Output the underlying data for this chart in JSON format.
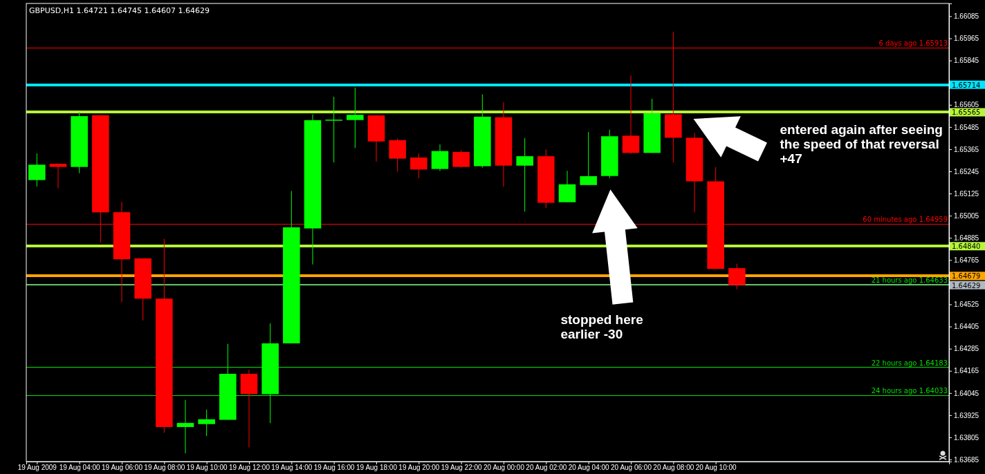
{
  "chart_data": {
    "type": "candlestick",
    "title": "GBPUSD,H1  1.64721 1.64745 1.64607 1.64629",
    "x": [
      "2009-08-19T02:00",
      "2009-08-19T03:00",
      "2009-08-19T04:00",
      "2009-08-19T05:00",
      "2009-08-19T06:00",
      "2009-08-19T07:00",
      "2009-08-19T08:00",
      "2009-08-19T09:00",
      "2009-08-19T10:00",
      "2009-08-19T11:00",
      "2009-08-19T12:00",
      "2009-08-19T13:00",
      "2009-08-19T14:00",
      "2009-08-19T15:00",
      "2009-08-19T16:00",
      "2009-08-19T17:00",
      "2009-08-19T18:00",
      "2009-08-19T19:00",
      "2009-08-19T20:00",
      "2009-08-19T21:00",
      "2009-08-19T22:00",
      "2009-08-19T23:00",
      "2009-08-20T00:00",
      "2009-08-20T01:00",
      "2009-08-20T02:00",
      "2009-08-20T03:00",
      "2009-08-20T04:00",
      "2009-08-20T05:00",
      "2009-08-20T06:00",
      "2009-08-20T07:00",
      "2009-08-20T08:00",
      "2009-08-20T09:00",
      "2009-08-20T10:00",
      "2009-08-20T11:00"
    ],
    "ohlc": [
      [
        1.65198,
        1.65342,
        1.65163,
        1.65281
      ],
      [
        1.65286,
        1.65288,
        1.65153,
        1.65269
      ],
      [
        1.65269,
        1.65567,
        1.65235,
        1.65544
      ],
      [
        1.65549,
        1.65549,
        1.64859,
        1.65023
      ],
      [
        1.65024,
        1.6508,
        1.64537,
        1.64769
      ],
      [
        1.64774,
        1.64774,
        1.64438,
        1.64556
      ],
      [
        1.64556,
        1.6488,
        1.6383,
        1.63861
      ],
      [
        1.63861,
        1.64008,
        1.63719,
        1.63883
      ],
      [
        1.63877,
        1.63956,
        1.63812,
        1.63903
      ],
      [
        1.639,
        1.64311,
        1.639,
        1.64149
      ],
      [
        1.64149,
        1.64171,
        1.63751,
        1.64039
      ],
      [
        1.64039,
        1.64422,
        1.63882,
        1.64314
      ],
      [
        1.64314,
        1.65139,
        1.64314,
        1.64942
      ],
      [
        1.64936,
        1.65554,
        1.64741,
        1.65522
      ],
      [
        1.6552,
        1.65649,
        1.65293,
        1.65525
      ],
      [
        1.65523,
        1.65698,
        1.65371,
        1.65551
      ],
      [
        1.65548,
        1.6555,
        1.65298,
        1.65407
      ],
      [
        1.65414,
        1.65423,
        1.65243,
        1.65314
      ],
      [
        1.6532,
        1.65342,
        1.65208,
        1.65255
      ],
      [
        1.65258,
        1.65391,
        1.65247,
        1.65355
      ],
      [
        1.6535,
        1.6536,
        1.65265,
        1.65269
      ],
      [
        1.65273,
        1.65662,
        1.65265,
        1.65541
      ],
      [
        1.65538,
        1.6562,
        1.65163,
        1.65276
      ],
      [
        1.65276,
        1.65425,
        1.65027,
        1.65327
      ],
      [
        1.65327,
        1.65363,
        1.65047,
        1.65075
      ],
      [
        1.65078,
        1.65248,
        1.65078,
        1.65175
      ],
      [
        1.65171,
        1.65458,
        1.65171,
        1.65219
      ],
      [
        1.6522,
        1.6547,
        1.65208,
        1.65435
      ],
      [
        1.65438,
        1.65764,
        1.6534,
        1.65345
      ],
      [
        1.65345,
        1.65638,
        1.65345,
        1.65559
      ],
      [
        1.65554,
        1.66001,
        1.65293,
        1.65427
      ],
      [
        1.65427,
        1.65453,
        1.65023,
        1.65191
      ],
      [
        1.65191,
        1.65268,
        1.64717,
        1.64717
      ],
      [
        1.64721,
        1.64745,
        1.64607,
        1.64629
      ]
    ],
    "xlim": [
      "2009-08-19T01:30",
      "2009-08-20T21:00"
    ],
    "xticks": [
      {
        "value": "2009-08-19T02:00",
        "label": "19 Aug 2009"
      },
      {
        "value": "2009-08-19T04:00",
        "label": "19 Aug 04:00"
      },
      {
        "value": "2009-08-19T06:00",
        "label": "19 Aug 06:00"
      },
      {
        "value": "2009-08-19T08:00",
        "label": "19 Aug 08:00"
      },
      {
        "value": "2009-08-19T10:00",
        "label": "19 Aug 10:00"
      },
      {
        "value": "2009-08-19T12:00",
        "label": "19 Aug 12:00"
      },
      {
        "value": "2009-08-19T14:00",
        "label": "19 Aug 14:00"
      },
      {
        "value": "2009-08-19T16:00",
        "label": "19 Aug 16:00"
      },
      {
        "value": "2009-08-19T18:00",
        "label": "19 Aug 18:00"
      },
      {
        "value": "2009-08-19T20:00",
        "label": "19 Aug 20:00"
      },
      {
        "value": "2009-08-19T22:00",
        "label": "19 Aug 22:00"
      },
      {
        "value": "2009-08-20T00:00",
        "label": "20 Aug 00:00"
      },
      {
        "value": "2009-08-20T02:00",
        "label": "20 Aug 02:00"
      },
      {
        "value": "2009-08-20T04:00",
        "label": "20 Aug 04:00"
      },
      {
        "value": "2009-08-20T06:00",
        "label": "20 Aug 06:00"
      },
      {
        "value": "2009-08-20T08:00",
        "label": "20 Aug 08:00"
      },
      {
        "value": "2009-08-20T10:00",
        "label": "20 Aug 10:00"
      }
    ],
    "ylim": [
      1.63674,
      1.66154
    ],
    "yticks": [
      {
        "value": 1.66085,
        "label": "1.66085"
      },
      {
        "value": 1.65965,
        "label": "1.65965"
      },
      {
        "value": 1.65845,
        "label": "1.65845"
      },
      {
        "value": 1.65605,
        "label": "1.65605"
      },
      {
        "value": 1.65485,
        "label": "1.65485"
      },
      {
        "value": 1.65365,
        "label": "1.65365"
      },
      {
        "value": 1.65245,
        "label": "1.65245"
      },
      {
        "value": 1.65125,
        "label": "1.65125"
      },
      {
        "value": 1.65005,
        "label": "1.65005"
      },
      {
        "value": 1.64885,
        "label": "1.64885"
      },
      {
        "value": 1.64765,
        "label": "1.64765"
      },
      {
        "value": 1.64525,
        "label": "1.64525"
      },
      {
        "value": 1.64405,
        "label": "1.64405"
      },
      {
        "value": 1.64285,
        "label": "1.64285"
      },
      {
        "value": 1.64165,
        "label": "1.64165"
      },
      {
        "value": 1.64045,
        "label": "1.64045"
      },
      {
        "value": 1.63925,
        "label": "1.63925"
      },
      {
        "value": 1.63805,
        "label": "1.63805"
      },
      {
        "value": 1.63685,
        "label": "1.63685"
      }
    ],
    "ref_lines": [
      {
        "axis": "y",
        "value": 1.65913,
        "label": "6 days ago 1.65913",
        "color": "#ff0000"
      },
      {
        "axis": "y",
        "value": 1.65714,
        "label": "1.65714",
        "color": "#00e5ff"
      },
      {
        "axis": "y",
        "value": 1.65565,
        "label": "1.65565",
        "color": "#b5f53a"
      },
      {
        "axis": "y",
        "value": 1.64959,
        "label": "60 minutes ago 1.64959",
        "color": "#ff0000"
      },
      {
        "axis": "y",
        "value": 1.6484,
        "label": "1.64840",
        "color": "#b5f53a"
      },
      {
        "axis": "y",
        "value": 1.64679,
        "label": "1.64679",
        "color": "#ffa500"
      },
      {
        "axis": "y",
        "value": 1.64633,
        "label": "21 hours ago 1.64633",
        "color": "#00e000"
      },
      {
        "axis": "y",
        "value": 1.64629,
        "label": "1.64629",
        "color": "#b0b8c0"
      },
      {
        "axis": "y",
        "value": 1.64183,
        "label": "22 hours ago 1.64183",
        "color": "#00e000"
      },
      {
        "axis": "y",
        "value": 1.64033,
        "label": "24 hours ago 1.64033",
        "color": "#00e000"
      }
    ],
    "annotations": [
      "stopped here\nearlier -30",
      "entered again after seeing\nthe speed of that reversal\n+47"
    ]
  }
}
